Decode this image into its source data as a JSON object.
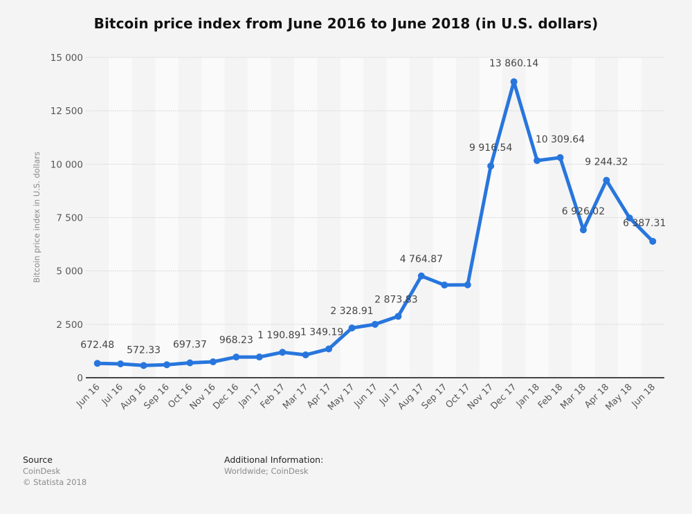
{
  "chart_data": {
    "type": "line",
    "title": "Bitcoin price index from June 2016 to June 2018 (in U.S. dollars)",
    "xlabel": "",
    "ylabel": "Bitcoin price index in U.S. dollars",
    "ylim": [
      0,
      15000
    ],
    "yticks": [
      0,
      2500,
      5000,
      7500,
      10000,
      12500,
      15000
    ],
    "ytick_labels": [
      "0",
      "2 500",
      "5 000",
      "7 500",
      "10 000",
      "12 500",
      "15 000"
    ],
    "grid": true,
    "series_color": "#2876dd",
    "categories": [
      "Jun 16",
      "Jul 16",
      "Aug 16",
      "Sep 16",
      "Oct 16",
      "Nov 16",
      "Dec 16",
      "Jan 17",
      "Feb 17",
      "Mar 17",
      "Apr 17",
      "May 17",
      "Jun 17",
      "Jul 17",
      "Aug 17",
      "Sep 17",
      "Oct 17",
      "Nov 17",
      "Dec 17",
      "Jan 18",
      "Feb 18",
      "Mar 18",
      "Apr 18",
      "May 18",
      "Jun 18"
    ],
    "series": [
      {
        "name": "Bitcoin price index",
        "values": [
          672.48,
          648,
          572.33,
          608,
          697.37,
          745,
          968.23,
          970,
          1190.89,
          1070,
          1349.19,
          2328.91,
          2500,
          2873.83,
          4764.87,
          4340,
          4350,
          9916.54,
          13860.14,
          10170,
          10309.64,
          6926.02,
          9244.32,
          7480,
          6387.31
        ],
        "data_labels": [
          "672.48",
          "",
          "572.33",
          "",
          "697.37",
          "",
          "968.23",
          "",
          "1 190.89",
          "",
          "1 349.19",
          "2 328.91",
          "",
          "2 873.83",
          "4 764.87",
          "",
          "",
          "9 916.54",
          "13 860.14",
          "",
          "10 309.64",
          "6 926.02",
          "9 244.32",
          "",
          "6 387.31"
        ]
      }
    ]
  },
  "footer": {
    "source_heading": "Source",
    "source_name": "CoinDesk",
    "copyright": "© Statista 2018",
    "additional_heading": "Additional Information:",
    "additional_text": "Worldwide; CoinDesk"
  }
}
